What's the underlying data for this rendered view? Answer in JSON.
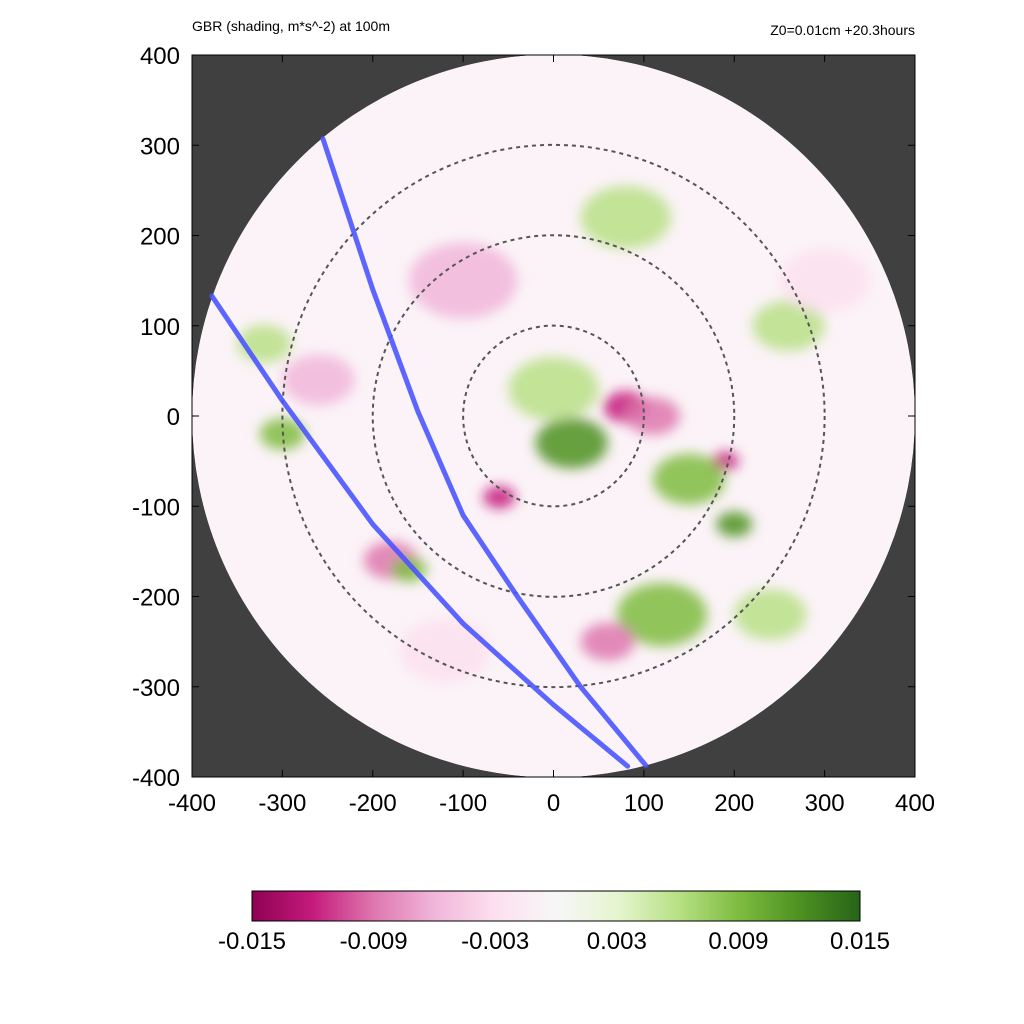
{
  "title_left": "GBR (shading, m*s^-2) at 100m",
  "title_right": "Z0=0.01cm  +20.3hours",
  "chart_data": {
    "type": "heatmap",
    "title": "GBR (shading, m*s^-2) at 100m",
    "annotation": "Z0=0.01cm  +20.3hours",
    "xlim": [
      -400,
      400
    ],
    "ylim": [
      -400,
      400
    ],
    "x_ticks": [
      "-400",
      "-300",
      "-200",
      "-100",
      "0",
      "100",
      "200",
      "300",
      "400"
    ],
    "y_ticks": [
      "400",
      "300",
      "200",
      "100",
      "0",
      "-100",
      "-200",
      "-300",
      "-400"
    ],
    "domain_radius": 400,
    "dashed_circle_radii": [
      100,
      200,
      300
    ],
    "colorbar": {
      "min": -0.015,
      "max": 0.015,
      "tick_labels": [
        "-0.015",
        "-0.009",
        "-0.003",
        "0.003",
        "0.009",
        "0.015"
      ],
      "colors": [
        "#8e0152",
        "#c51b7d",
        "#de77ae",
        "#f1b6da",
        "#fde0ef",
        "#f7f7f7",
        "#e6f5d0",
        "#b8e186",
        "#7fbc41",
        "#4d9221",
        "#276419"
      ]
    },
    "background_color": "#404040",
    "track_color": "#4a55ff",
    "tracks": [
      {
        "points": [
          [
            -378,
            133
          ],
          [
            -300,
            17
          ],
          [
            -200,
            -120
          ],
          [
            -100,
            -230
          ],
          [
            0,
            -320
          ],
          [
            82,
            -388
          ]
        ]
      },
      {
        "points": [
          [
            -255,
            307
          ],
          [
            -200,
            140
          ],
          [
            -150,
            5
          ],
          [
            -100,
            -110
          ],
          [
            -40,
            -200
          ],
          [
            30,
            -300
          ],
          [
            102,
            -387
          ]
        ]
      }
    ],
    "features": [
      {
        "x": 20,
        "y": -30,
        "value": 0.012,
        "size": 40
      },
      {
        "x": 0,
        "y": 30,
        "value": 0.006,
        "size": 50
      },
      {
        "x": 80,
        "y": 10,
        "value": -0.013,
        "size": 25
      },
      {
        "x": 110,
        "y": 0,
        "value": -0.009,
        "size": 30
      },
      {
        "x": -60,
        "y": -90,
        "value": -0.011,
        "size": 18
      },
      {
        "x": 190,
        "y": -50,
        "value": -0.012,
        "size": 15
      },
      {
        "x": 200,
        "y": -120,
        "value": 0.013,
        "size": 20
      },
      {
        "x": 150,
        "y": -70,
        "value": 0.008,
        "size": 40
      },
      {
        "x": -100,
        "y": 150,
        "value": -0.007,
        "size": 60
      },
      {
        "x": 80,
        "y": 220,
        "value": 0.006,
        "size": 50
      },
      {
        "x": 260,
        "y": 100,
        "value": 0.007,
        "size": 40
      },
      {
        "x": 120,
        "y": -220,
        "value": 0.009,
        "size": 50
      },
      {
        "x": 60,
        "y": -250,
        "value": -0.009,
        "size": 30
      },
      {
        "x": -300,
        "y": -20,
        "value": 0.01,
        "size": 25
      },
      {
        "x": -180,
        "y": -160,
        "value": -0.008,
        "size": 30
      },
      {
        "x": -160,
        "y": -170,
        "value": 0.009,
        "size": 20
      },
      {
        "x": -320,
        "y": 80,
        "value": 0.006,
        "size": 30
      },
      {
        "x": -260,
        "y": 40,
        "value": -0.005,
        "size": 40
      },
      {
        "x": 240,
        "y": -220,
        "value": 0.006,
        "size": 40
      },
      {
        "x": 300,
        "y": 150,
        "value": -0.004,
        "size": 50
      },
      {
        "x": -120,
        "y": -260,
        "value": -0.004,
        "size": 50
      }
    ]
  }
}
